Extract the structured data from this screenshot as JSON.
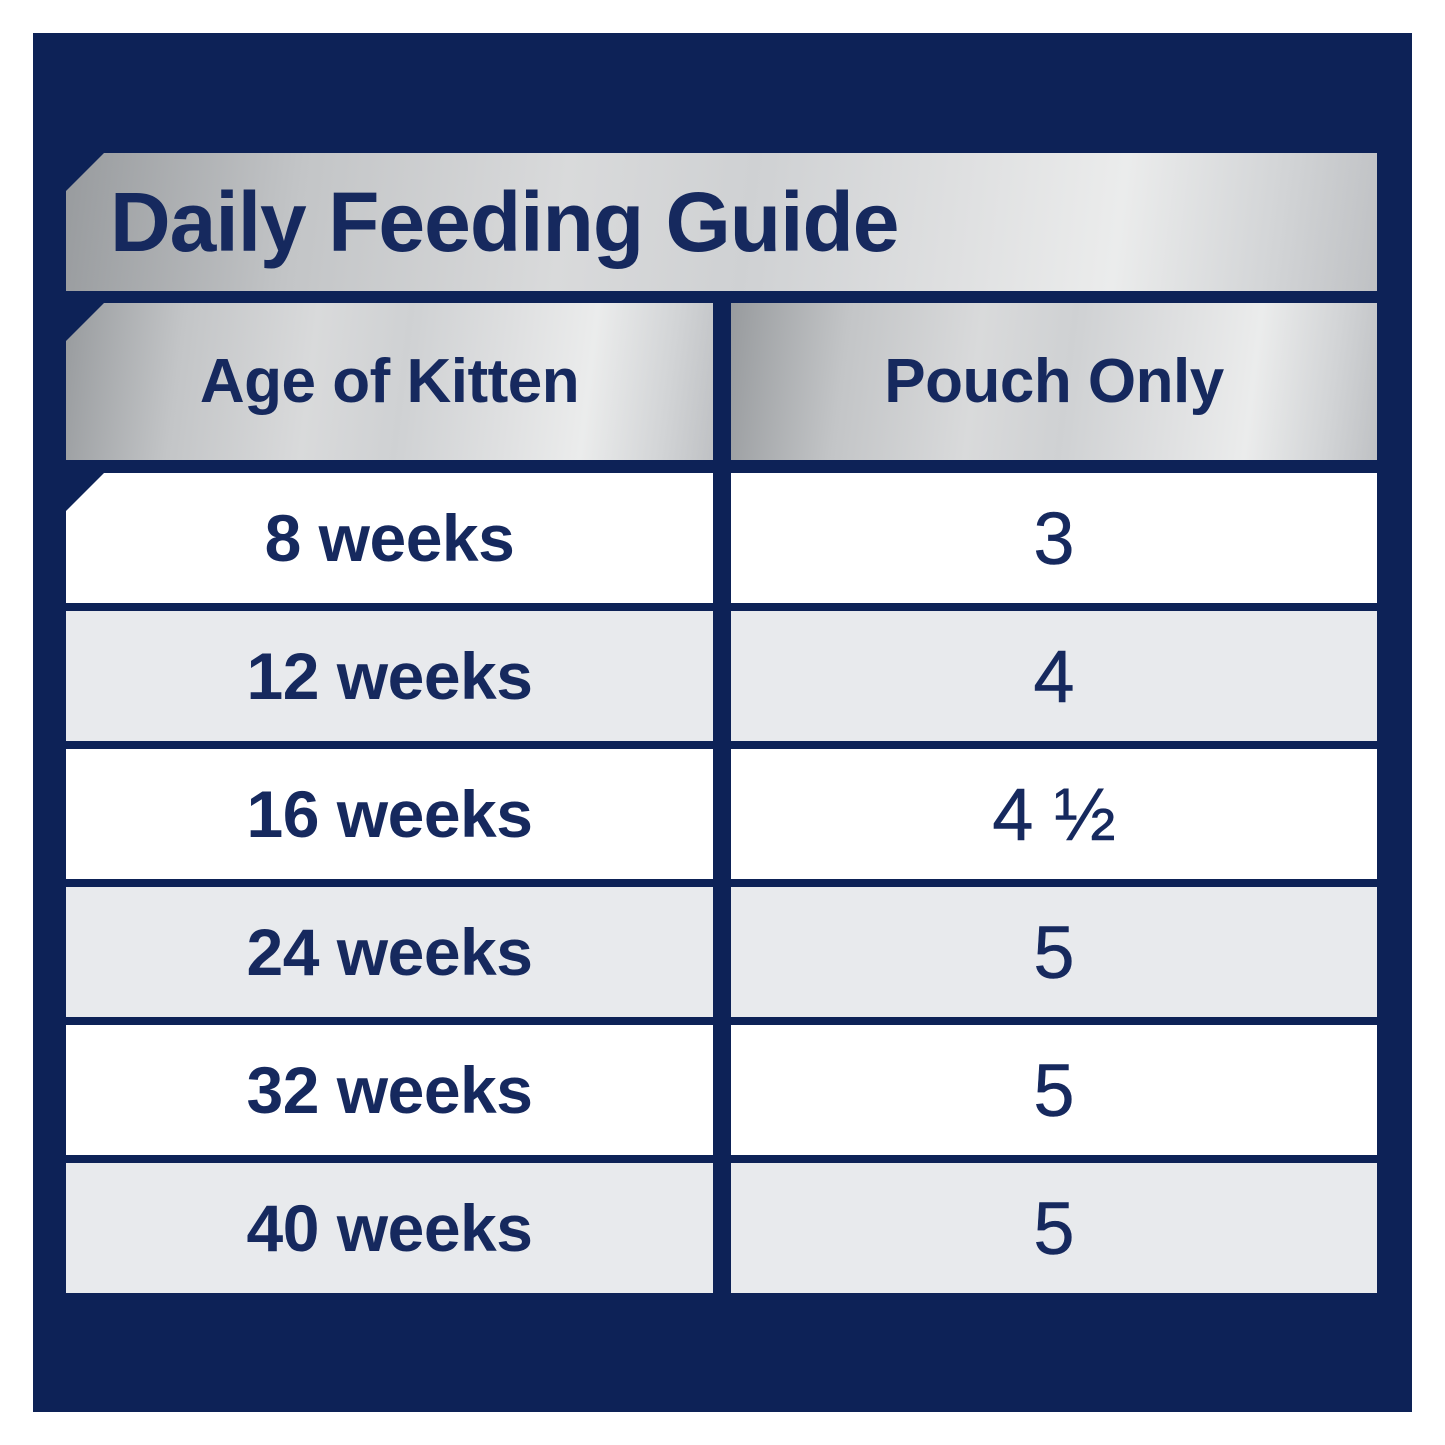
{
  "title": "Daily Feeding Guide",
  "colors": {
    "panel_navy": "#0d2257",
    "text_navy": "#16295e",
    "row_white": "#ffffff",
    "row_grey": "#e8eaed",
    "silver_dark": "#989b9e",
    "silver_light": "#ebecec"
  },
  "table": {
    "columns": [
      {
        "label": "Age of Kitten"
      },
      {
        "label": "Pouch Only"
      }
    ],
    "rows": [
      {
        "age": "8 weeks",
        "pouches": "3"
      },
      {
        "age": "12 weeks",
        "pouches": "4"
      },
      {
        "age": "16 weeks",
        "pouches": "4 ½"
      },
      {
        "age": "24 weeks",
        "pouches": "5"
      },
      {
        "age": "32 weeks",
        "pouches": "5"
      },
      {
        "age": "40 weeks",
        "pouches": "5"
      }
    ]
  },
  "chart_data": {
    "type": "table",
    "title": "Daily Feeding Guide",
    "columns": [
      "Age of Kitten",
      "Pouch Only"
    ],
    "categories": [
      "8 weeks",
      "12 weeks",
      "16 weeks",
      "24 weeks",
      "32 weeks",
      "40 weeks"
    ],
    "values": [
      3,
      4,
      4.5,
      5,
      5,
      5
    ],
    "rows": [
      [
        "8 weeks",
        "3"
      ],
      [
        "12 weeks",
        "4"
      ],
      [
        "16 weeks",
        "4 ½"
      ],
      [
        "24 weeks",
        "5"
      ],
      [
        "32 weeks",
        "5"
      ],
      [
        "40 weeks",
        "5"
      ]
    ],
    "layout_hints": {
      "row_striping": [
        "white",
        "grey",
        "white",
        "grey",
        "white",
        "grey"
      ],
      "header_style": "metallic-silver",
      "background": "navy"
    }
  }
}
